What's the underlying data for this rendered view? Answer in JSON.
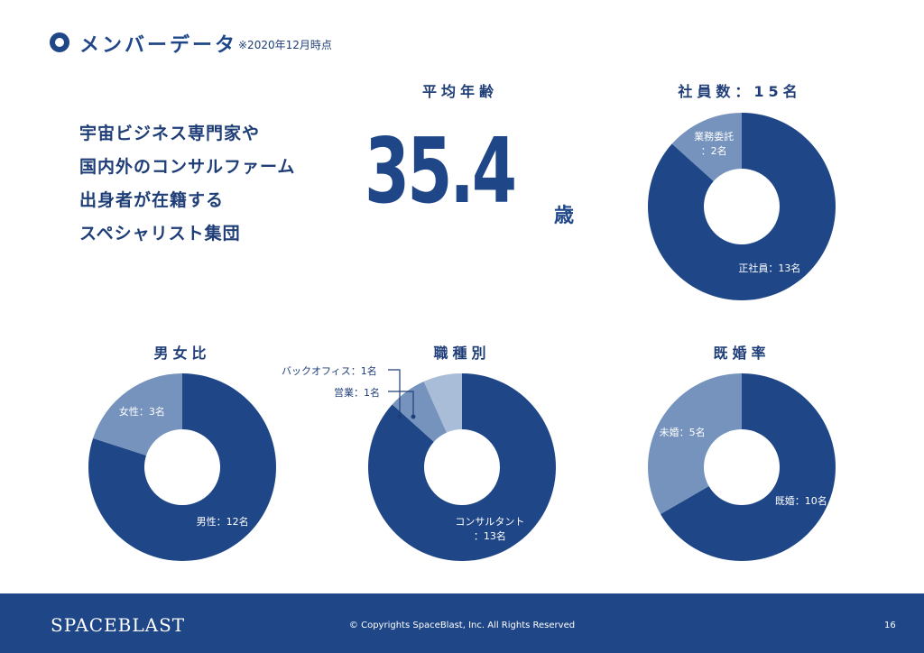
{
  "header": {
    "title": "メンバーデータ",
    "as_of": "※2020年12月時点"
  },
  "tagline": [
    "宇宙ビジネス専門家や",
    "国内外のコンサルファーム",
    "出身者が在籍する",
    "スペシャリスト集団"
  ],
  "average_age": {
    "heading": "平均年齢",
    "value": "35.4",
    "unit": "歳"
  },
  "colors": {
    "primary": "#1f4788",
    "mid": "#7593bd",
    "light": "#a9bdd8",
    "footer": "#1f4788"
  },
  "chart_data": [
    {
      "id": "emp",
      "type": "pie",
      "title": "社員数：15名",
      "categories": [
        "正社員",
        "業務委託"
      ],
      "values": [
        13,
        2
      ],
      "labels": [
        "正社員：13名",
        "業務委託\n：2名"
      ],
      "colors": [
        "#1f4788",
        "#7593bd"
      ]
    },
    {
      "id": "gen",
      "type": "pie",
      "title": "男女比",
      "categories": [
        "男性",
        "女性"
      ],
      "values": [
        12,
        3
      ],
      "labels": [
        "男性：12名",
        "女性：3名"
      ],
      "colors": [
        "#1f4788",
        "#7593bd"
      ]
    },
    {
      "id": "job",
      "type": "pie",
      "title": "職種別",
      "categories": [
        "コンサルタント",
        "営業",
        "バックオフィス"
      ],
      "values": [
        13,
        1,
        1
      ],
      "labels": [
        "コンサルタント\n：13名",
        "",
        ""
      ],
      "callouts": [
        "",
        "営業：1名",
        "バックオフィス：1名"
      ],
      "colors": [
        "#1f4788",
        "#7593bd",
        "#a9bdd8"
      ]
    },
    {
      "id": "mar",
      "type": "pie",
      "title": "既婚率",
      "categories": [
        "既婚",
        "未婚"
      ],
      "values": [
        10,
        5
      ],
      "labels": [
        "既婚：10名",
        "未婚：5名"
      ],
      "colors": [
        "#1f4788",
        "#7593bd"
      ]
    }
  ],
  "footer": {
    "logo": "SPACEBLAST",
    "copyright": "© Copyrights SpaceBlast, Inc. All Rights Reserved",
    "page": "16"
  }
}
